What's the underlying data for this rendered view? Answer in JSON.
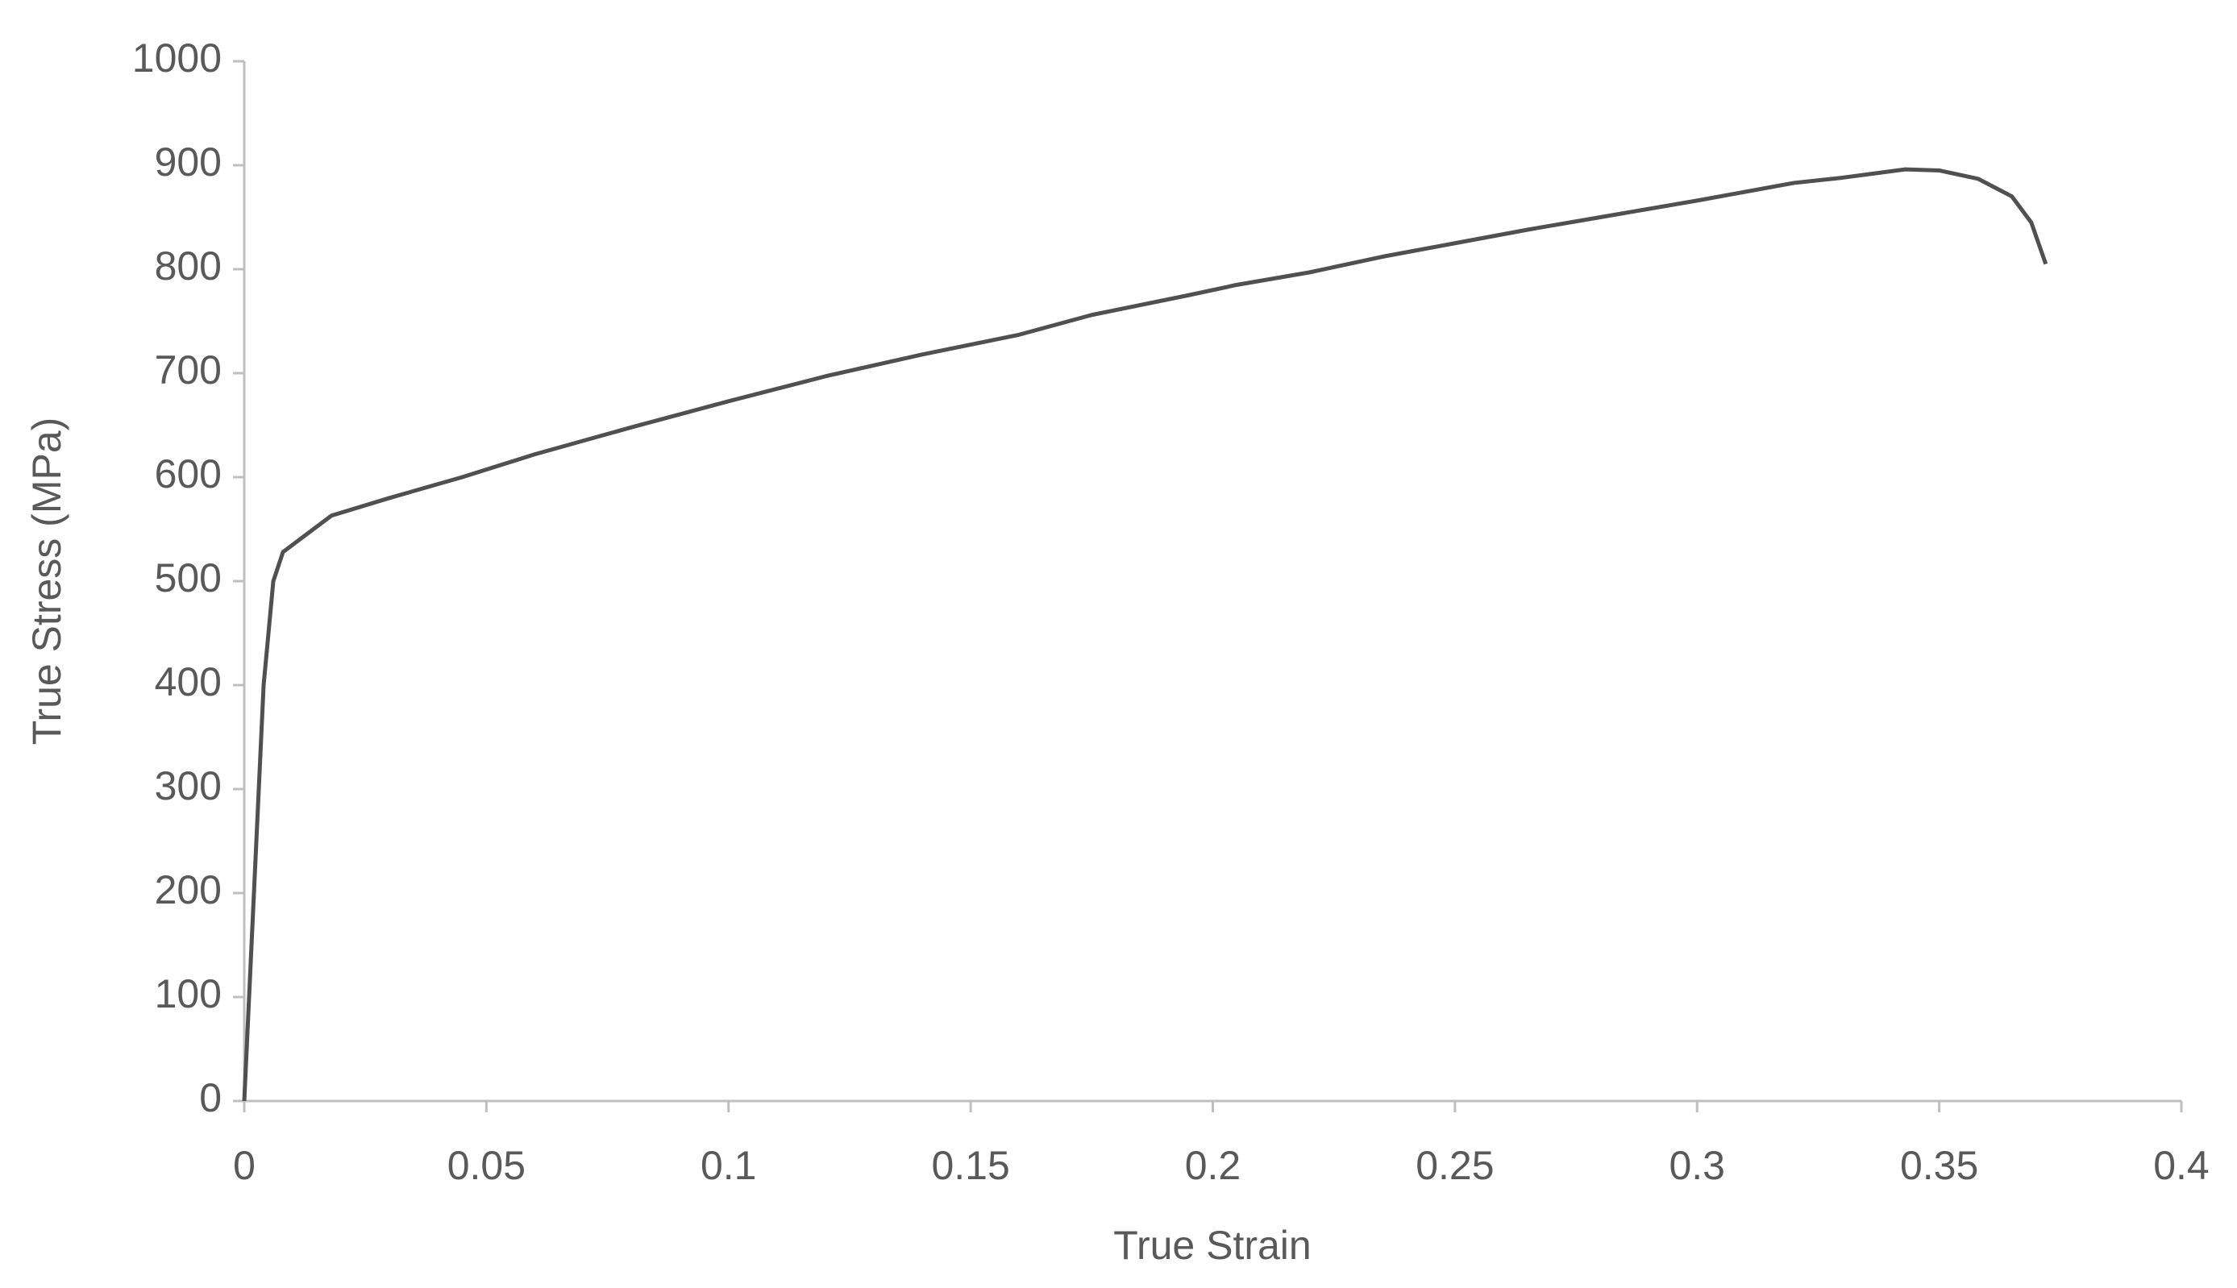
{
  "chart_data": {
    "type": "line",
    "x_label": "True Strain",
    "y_label": "True Stress (MPa)",
    "x": [
      0,
      0.002,
      0.004,
      0.005,
      0.006,
      0.008,
      0.018,
      0.03,
      0.045,
      0.06,
      0.08,
      0.1,
      0.12,
      0.14,
      0.16,
      0.175,
      0.195,
      0.205,
      0.22,
      0.235,
      0.25,
      0.265,
      0.28,
      0.3,
      0.32,
      0.33,
      0.343,
      0.35,
      0.358,
      0.365,
      0.369,
      0.372
    ],
    "series": [
      {
        "name": "True Stress",
        "color": "#505050",
        "values": [
          0,
          200,
          400,
          450,
          500,
          528,
          563,
          580,
          600,
          622,
          648,
          673,
          697,
          718,
          737,
          756,
          775,
          785,
          797,
          812,
          825,
          838,
          850,
          866,
          883,
          888,
          896,
          895,
          887,
          870,
          845,
          805
        ]
      }
    ],
    "xlim": [
      0,
      0.4
    ],
    "xticks": [
      0,
      0.05,
      0.1,
      0.15,
      0.2,
      0.25,
      0.3,
      0.35,
      0.4
    ],
    "ylim": [
      0,
      1000
    ],
    "yticks": [
      0,
      100,
      200,
      300,
      400,
      500,
      600,
      700,
      800,
      900,
      1000
    ],
    "grid": false
  }
}
